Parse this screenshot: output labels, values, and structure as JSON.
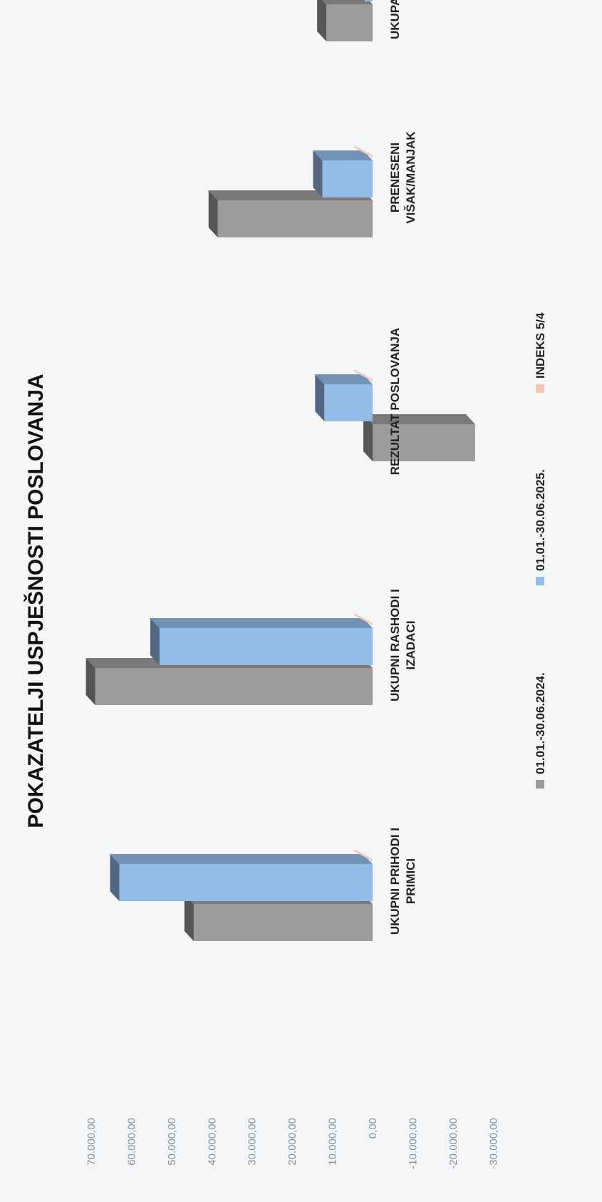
{
  "chart_data": {
    "type": "bar",
    "title": "POKAZATELJI USPJEŠNOSTI POSLOVANJA",
    "categories": [
      [
        "UKUPNI PRIHODI I",
        "PRIMICI"
      ],
      [
        "UKUPNI RASHODI I",
        "IZADACI"
      ],
      [
        "REZULTAT POSLOVANJA"
      ],
      [
        "PRENESENI",
        "VIŠAK/MANJAK"
      ],
      [
        "UKUPAN REZULTAT"
      ]
    ],
    "series": [
      {
        "name": "01.01.-30.06.2024.",
        "values": [
          44500,
          69000,
          -25500,
          38500,
          11500
        ],
        "color": "#9c9a9b"
      },
      {
        "name": "01.01.-30.06.2025.",
        "values": [
          63000,
          53000,
          12000,
          12500,
          2000
        ],
        "color": "#93bde8"
      },
      {
        "name": "INDEKS 5/4",
        "values": [
          0,
          0,
          0,
          0,
          0
        ],
        "color": "#f3c9b6"
      }
    ],
    "yticks": [
      "70.000,00",
      "60.000,00",
      "50.000,00",
      "40.000,00",
      "30.000,00",
      "20.000,00",
      "10.000,00",
      "0,00",
      "-10.000,00",
      "-20.000,00",
      "-30.000,00"
    ],
    "ylim": [
      -30000,
      70000
    ],
    "grid": false,
    "legend_position": "bottom"
  }
}
